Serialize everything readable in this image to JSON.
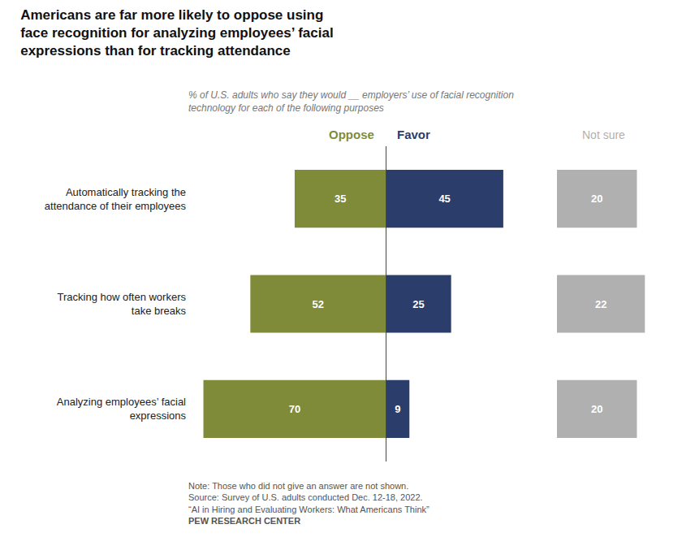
{
  "chart_data": {
    "type": "bar",
    "orientation": "horizontal",
    "title": "Americans are far more likely to oppose using\nface recognition for analyzing employees’ facial\nexpressions than for tracking attendance",
    "subtitle": "% of U.S. adults who say they would __ employers’ use of facial recognition\ntechnology for each of the following purposes",
    "categories": [
      "Automatically tracking the\nattendance of their employees",
      "Tracking how often workers\ntake breaks",
      "Analyzing employees’ facial\nexpressions"
    ],
    "series": [
      {
        "name": "Oppose",
        "color": "#808b3a",
        "values": [
          35,
          52,
          70
        ]
      },
      {
        "name": "Favor",
        "color": "#2b3d6b",
        "values": [
          45,
          25,
          9
        ]
      },
      {
        "name": "Not sure",
        "color": "#b0b0b0",
        "values": [
          20,
          22,
          20
        ]
      }
    ],
    "data_labels": true,
    "tick_labels": "y",
    "grid": false,
    "annotations": [
      "Note: Those who did not give an answer are not shown.",
      "Source: Survey of U.S. adults conducted Dec. 12-18, 2022.",
      "“AI in Hiring and Evaluating Workers: What Americans Think”",
      "PEW RESEARCH CENTER"
    ]
  }
}
